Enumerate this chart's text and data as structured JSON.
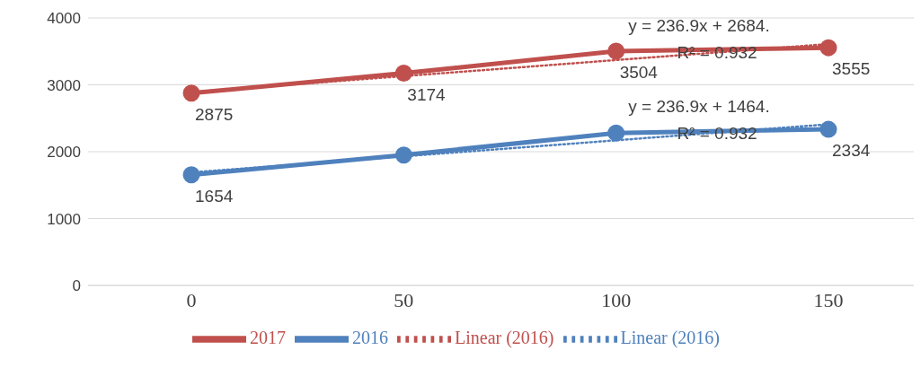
{
  "chart_data": {
    "type": "line",
    "categories": [
      "0",
      "50",
      "100",
      "150"
    ],
    "series": [
      {
        "name": "2017",
        "color": "#c0504d",
        "values": [
          2875,
          3174,
          3504,
          3555
        ],
        "value_labels": [
          "2875",
          "3174",
          "3504",
          "3555"
        ],
        "marker": "circle",
        "line_style": "solid"
      },
      {
        "name": "2016",
        "color": "#4f81bd",
        "values": [
          1654,
          1950,
          2280,
          2334
        ],
        "value_labels": [
          "1654",
          null,
          null,
          "2334"
        ],
        "marker": "circle",
        "line_style": "solid"
      },
      {
        "name": "Linear (2016)",
        "color": "#c0504d",
        "values": [
          2890,
          3130,
          3370,
          3610
        ],
        "marker": "none",
        "line_style": "dotted"
      },
      {
        "name": "Linear (2016)",
        "color": "#4f81bd",
        "values": [
          1690,
          1930,
          2170,
          2410
        ],
        "marker": "none",
        "line_style": "dotted"
      }
    ],
    "ylim": [
      0,
      4000
    ],
    "yticks": [
      0,
      1000,
      2000,
      3000,
      4000
    ],
    "grid": "y",
    "legend": "bottom",
    "annotations": [
      "y = 236.9x + 2684.",
      "R² = 0.932",
      "y = 236.9x + 1464.",
      "R² = 0.932"
    ]
  }
}
